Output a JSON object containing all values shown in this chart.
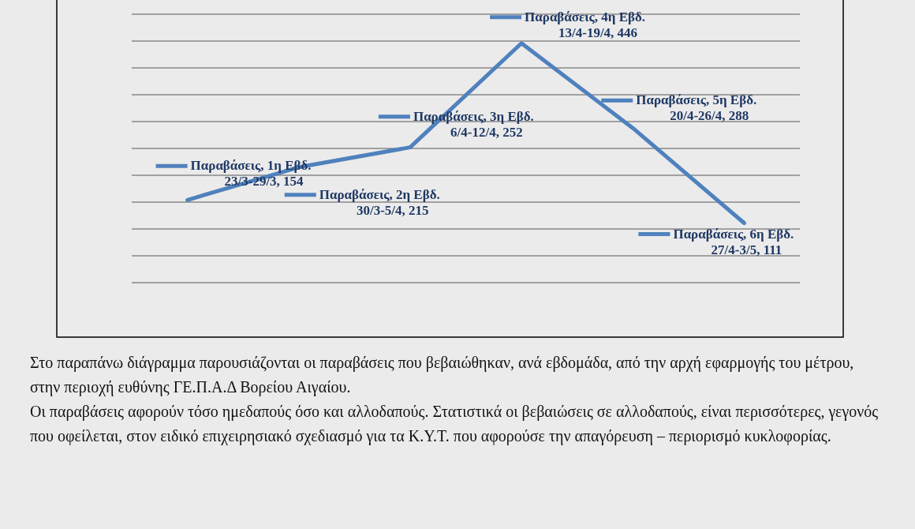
{
  "chart_data": {
    "type": "line",
    "categories": [
      null,
      null,
      null,
      null,
      null,
      null
    ],
    "series": [
      {
        "color": "#4f81bd",
        "values": [
          154,
          215,
          252,
          446,
          288,
          111
        ],
        "value_labels": [
          "Παραβάσεις, 1η Εβδ. 23/3-29/3, 154",
          "Παραβάσεις, 2η Εβδ. 30/3-5/4, 215",
          "Παραβάσεις, 3η Εβδ. 6/4-12/4, 252",
          "Παραβάσεις, 4η Εβδ. 13/4-19/4, 446",
          "Παραβάσεις, 5η Εβδ. 20/4-26/4, 288",
          "Παραβάσεις, 6η Εβδ. 27/4-3/5, 111"
        ]
      }
    ],
    "ylim": [
      0,
      500
    ],
    "yticks": [
      {
        "value": 0,
        "label": null
      },
      {
        "value": 50,
        "label": null
      },
      {
        "value": 100,
        "label": null
      },
      {
        "value": 150,
        "label": null
      },
      {
        "value": 200,
        "label": null
      },
      {
        "value": 250,
        "label": null
      },
      {
        "value": 300,
        "label": null
      },
      {
        "value": 350,
        "label": null
      },
      {
        "value": 400,
        "label": null
      },
      {
        "value": 450,
        "label": null
      },
      {
        "value": 500,
        "label": null
      }
    ],
    "grid": "y",
    "legend": false,
    "marker": "none",
    "line_style": "solid",
    "annotations": [
      "Στο παραπάνω διάγραμμα παρουσιάζονται οι παραβάσεις που βεβαιώθηκαν, ανά εβδομάδα, από την αρχή εφαρμογής του μέτρου, στην περιοχή ευθύνης ΓΕ.Π.Α.Δ Βορείου Αιγαίου.",
      "Οι παραβάσεις αφορούν τόσο ημεδαπούς όσο και αλλοδαπούς. Στατιστικά οι  βεβαιώσεις σε αλλοδαπούς, είναι περισσότερες, γεγονός που οφείλεται, στον ειδικό επιχειρησιακό σχεδιασμό για τα Κ.Υ.Τ. που αφορούσε την απαγόρευση – περιορισμό κυκλοφορίας."
    ]
  }
}
